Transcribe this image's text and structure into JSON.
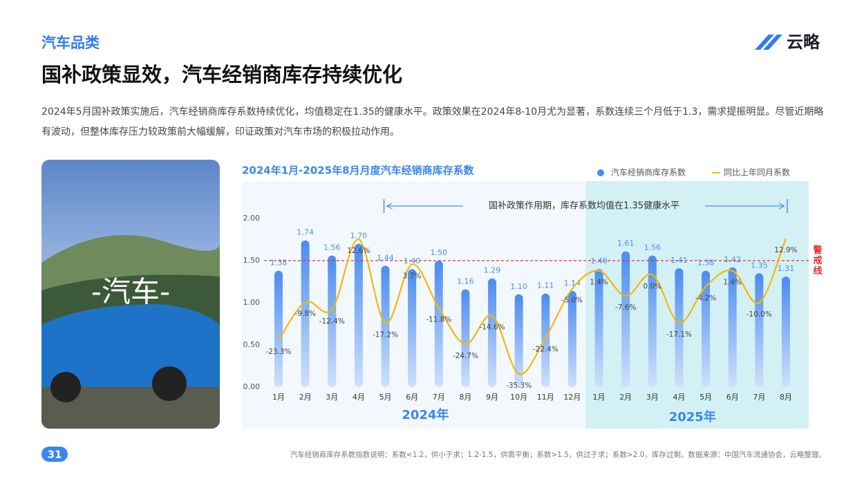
{
  "header": {
    "section": "汽车品类",
    "title": "国补政策显效，汽车经销商库存持续优化",
    "brand": "云略",
    "description": "2024年5月国补政策实施后，汽车经销商库存系数持续优化，均值稳定在1.35的健康水平。政策效果在2024年8-10月尤为显著，系数连续三个月低于1.3，需求提振明显。尽管近期略有波动，但整体库存压力较政策前大幅缓解，印证政策对汽车市场的积极拉动作用。"
  },
  "image_caption": "-汽车-",
  "page_number": "31",
  "footnote": "汽车经销商库存系数指数说明：系数<1.2，供小于求；1.2-1.5，供需平衡；系数>1.5，供过于求；系数>2.0，库存过剩。数据来源：中国汽车流通协会，云略整理。",
  "chart_data": {
    "type": "bar",
    "title": "2024年1月-2025年8月月度汽车经销商库存系数",
    "categories": [
      "1月",
      "2月",
      "3月",
      "4月",
      "5月",
      "6月",
      "7月",
      "8月",
      "9月",
      "10月",
      "11月",
      "12月",
      "1月",
      "2月",
      "3月",
      "4月",
      "5月",
      "6月",
      "7月",
      "8月"
    ],
    "year_labels": [
      "2024年",
      "2025年"
    ],
    "annotation": "国补政策作用期，库存系数均值在1.35健康水平",
    "reference_line": {
      "value": 1.5,
      "label": "警戒线",
      "color": "#e03030"
    },
    "ylim": [
      0,
      2
    ],
    "yticks": [
      {
        "value": 0,
        "label": "0.00"
      },
      {
        "value": 0.5,
        "label": "0.50"
      },
      {
        "value": 1,
        "label": "1.00"
      },
      {
        "value": 1.5,
        "label": "1.50"
      },
      {
        "value": 2,
        "label": "2.00"
      }
    ],
    "y2lim": [
      -40,
      20
    ],
    "legend": "top-right",
    "series": [
      {
        "name": "汽车经销商库存系数",
        "color": "#4a8cf0",
        "values": [
          1.38,
          1.74,
          1.56,
          1.7,
          1.44,
          1.4,
          1.5,
          1.16,
          1.29,
          1.1,
          1.11,
          1.14,
          1.4,
          1.61,
          1.56,
          1.41,
          1.38,
          1.42,
          1.35,
          1.31
        ],
        "value_labels": [
          "1.38",
          "1.74",
          "1.56",
          "1.70",
          "1.44",
          "1.40",
          "1.50",
          "1.16",
          "1.29",
          "1.10",
          "1.11",
          "1.14",
          "1.40",
          "1.61",
          "1.56",
          "1.41",
          "1.38",
          "1.42",
          "1.35",
          "1.31"
        ]
      },
      {
        "name": "同比上年同月系数",
        "color": "#f5b800",
        "axis": "y2",
        "values": [
          -23.3,
          -9.8,
          -12.4,
          12.6,
          -17.2,
          3.7,
          -11.8,
          -24.7,
          -14.6,
          -35.3,
          -22.4,
          -5.0,
          1.4,
          -7.6,
          0.0,
          -17.1,
          -4.2,
          1.4,
          -10.0,
          12.9
        ],
        "value_labels": [
          "-23.3%",
          "-9.8%",
          "-12.4%",
          "12.6%",
          "-17.2%",
          "3.7%",
          "-11.8%",
          "-24.7%",
          "-14.6%",
          "-35.3%",
          "-22.4%",
          "-5.0%",
          "1.4%",
          "-7.6%",
          "0.0%",
          "-17.1%",
          "-4.2%",
          "1.4%",
          "-10.0%",
          "12.9%"
        ]
      }
    ]
  }
}
